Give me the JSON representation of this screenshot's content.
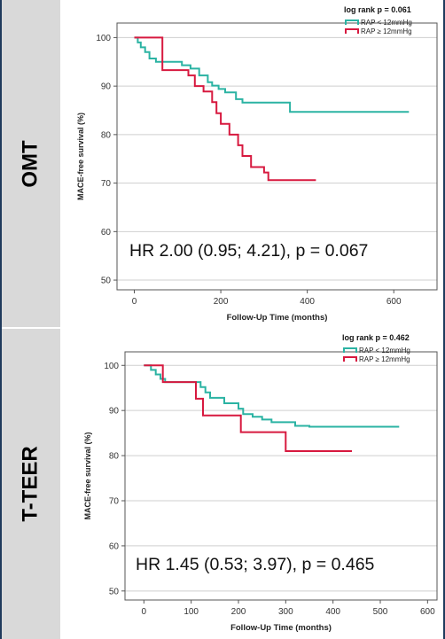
{
  "panels": [
    {
      "side_label": "OMT",
      "chart_data": {
        "type": "line",
        "title": "",
        "xlabel": "Follow-Up Time (months)",
        "ylabel": "MACE-free survival (%)",
        "xlim": [
          -40,
          700
        ],
        "ylim": [
          48,
          103
        ],
        "xticks": [
          0,
          200,
          400,
          600
        ],
        "yticks": [
          50,
          60,
          70,
          80,
          90,
          100
        ],
        "grid": "horizontal",
        "legend_position": "top-right",
        "legend_title": "log rank p = 0.061",
        "annotation": "HR 2.00 (0.95; 4.21), p = 0.067",
        "series": [
          {
            "name": "RAP < 12mmHg",
            "color": "#2bb3a3",
            "x": [
              0,
              8,
              8,
              15,
              15,
              25,
              25,
              35,
              35,
              50,
              50,
              110,
              110,
              130,
              130,
              150,
              150,
              170,
              170,
              180,
              180,
              195,
              195,
              210,
              210,
              235,
              235,
              250,
              250,
              360,
              360,
              635
            ],
            "y": [
              100,
              100,
              99,
              99,
              98,
              98,
              97,
              97,
              95.7,
              95.7,
              95,
              95,
              94.3,
              94.3,
              93.6,
              93.6,
              92.2,
              92.2,
              90.8,
              90.8,
              90.1,
              90.1,
              89.4,
              89.4,
              88.7,
              88.7,
              87.3,
              87.3,
              86.6,
              86.6,
              84.7,
              84.7
            ]
          },
          {
            "name": "RAP ≥ 12mmHg",
            "color": "#d7193f",
            "x": [
              0,
              65,
              65,
              125,
              125,
              140,
              140,
              160,
              160,
              180,
              180,
              190,
              190,
              200,
              200,
              220,
              220,
              240,
              240,
              250,
              250,
              270,
              270,
              300,
              300,
              310,
              310,
              420
            ],
            "y": [
              100,
              100,
              93.3,
              93.3,
              92.2,
              92.2,
              90,
              90,
              88.9,
              88.9,
              86.7,
              86.7,
              84.4,
              84.4,
              82.2,
              82.2,
              80,
              80,
              77.8,
              77.8,
              75.6,
              75.6,
              73.3,
              73.3,
              72.2,
              72.2,
              70.6,
              70.6
            ]
          }
        ]
      }
    },
    {
      "side_label": "T-TEER",
      "chart_data": {
        "type": "line",
        "title": "",
        "xlabel": "Follow-Up Time (months)",
        "ylabel": "MACE-free survival (%)",
        "xlim": [
          -40,
          620
        ],
        "ylim": [
          48,
          103
        ],
        "xticks": [
          0,
          100,
          200,
          300,
          400,
          500,
          600
        ],
        "yticks": [
          50,
          60,
          70,
          80,
          90,
          100
        ],
        "grid": "horizontal",
        "legend_position": "top-right",
        "legend_title": "log rank p = 0.462",
        "annotation": "HR 1.45 (0.53; 3.97), p = 0.465",
        "series": [
          {
            "name": "RAP < 12mmHg",
            "color": "#2bb3a3",
            "x": [
              0,
              15,
              15,
              25,
              25,
              35,
              35,
              45,
              45,
              120,
              120,
              130,
              130,
              140,
              140,
              170,
              170,
              200,
              200,
              210,
              210,
              230,
              230,
              250,
              250,
              270,
              270,
              320,
              320,
              350,
              350,
              540
            ],
            "y": [
              100,
              100,
              99,
              99,
              98,
              98,
              97,
              97,
              96.3,
              96.3,
              95.2,
              95.2,
              94,
              94,
              92.8,
              92.8,
              91.6,
              91.6,
              90.4,
              90.4,
              89.2,
              89.2,
              88.6,
              88.6,
              88,
              88,
              87.4,
              87.4,
              86.6,
              86.6,
              86.4,
              86.4
            ]
          },
          {
            "name": "RAP ≥ 12mmHg",
            "color": "#d7193f",
            "x": [
              0,
              40,
              40,
              110,
              110,
              125,
              125,
              205,
              205,
              300,
              300,
              440
            ],
            "y": [
              100,
              100,
              96.3,
              96.3,
              92.6,
              92.6,
              88.9,
              88.9,
              85.2,
              85.2,
              81,
              81
            ]
          }
        ]
      }
    }
  ]
}
